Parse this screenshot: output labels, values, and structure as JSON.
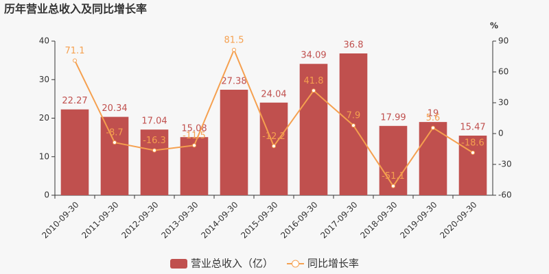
{
  "chart_data": {
    "type": "bar-line",
    "title": "历年营业总收入及同比增长率",
    "y2_label": "%",
    "categories": [
      "2010-09-30",
      "2011-09-30",
      "2012-09-30",
      "2013-09-30",
      "2014-09-30",
      "2015-09-30",
      "2016-09-30",
      "2017-09-30",
      "2018-09-30",
      "2019-09-30",
      "2020-09-30"
    ],
    "series": [
      {
        "name": "营业总收入（亿）",
        "type": "bar",
        "color": "#c0504e",
        "values": [
          22.27,
          20.34,
          17.04,
          15.08,
          27.38,
          24.04,
          34.09,
          36.8,
          17.99,
          19,
          15.47
        ]
      },
      {
        "name": "同比增长率",
        "type": "line",
        "axis": "y2",
        "color": "#f5a04f",
        "values": [
          71.1,
          -8.7,
          -16.3,
          -11.5,
          81.5,
          -12.2,
          41.8,
          7.9,
          -51.1,
          5.6,
          -18.6
        ]
      }
    ],
    "ylim": [
      0,
      40
    ],
    "yticks": [
      0,
      10,
      20,
      30,
      40
    ],
    "y2lim": [
      -60,
      90
    ],
    "y2ticks": [
      -60,
      -30,
      0,
      30,
      60,
      90
    ],
    "grid": false,
    "legend": "bottom"
  }
}
